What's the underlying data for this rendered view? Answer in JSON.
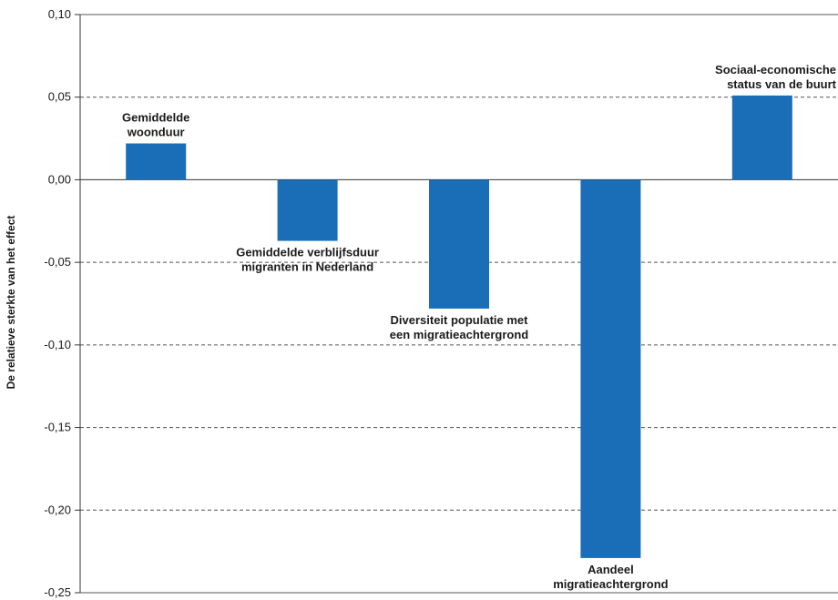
{
  "chart_data": {
    "type": "bar",
    "title": "",
    "xlabel": "",
    "ylabel": "De relatieve sterkte van het effect",
    "ylim": [
      -0.25,
      0.1
    ],
    "yticks": [
      0.1,
      0.05,
      0.0,
      -0.05,
      -0.1,
      -0.15,
      -0.2,
      -0.25
    ],
    "ytick_labels": [
      "0,10",
      "0,05",
      "0,00",
      "-0,05",
      "-0,10",
      "-0,15",
      "-0,20",
      "-0,25"
    ],
    "grid": "horizontal-dashed",
    "bar_color": "#1a6eb8",
    "categories": [
      [
        "Gemiddelde",
        "woonduur"
      ],
      [
        "Gemiddelde verblijfsduur",
        "migranten in Nederland"
      ],
      [
        "Diversiteit populatie met",
        "een migratieachtergrond"
      ],
      [
        "Aandeel",
        "migratieachtergrond"
      ],
      [
        "Sociaal-economische",
        "status van de buurt"
      ]
    ],
    "values": [
      0.022,
      -0.037,
      -0.078,
      -0.229,
      0.051
    ]
  }
}
